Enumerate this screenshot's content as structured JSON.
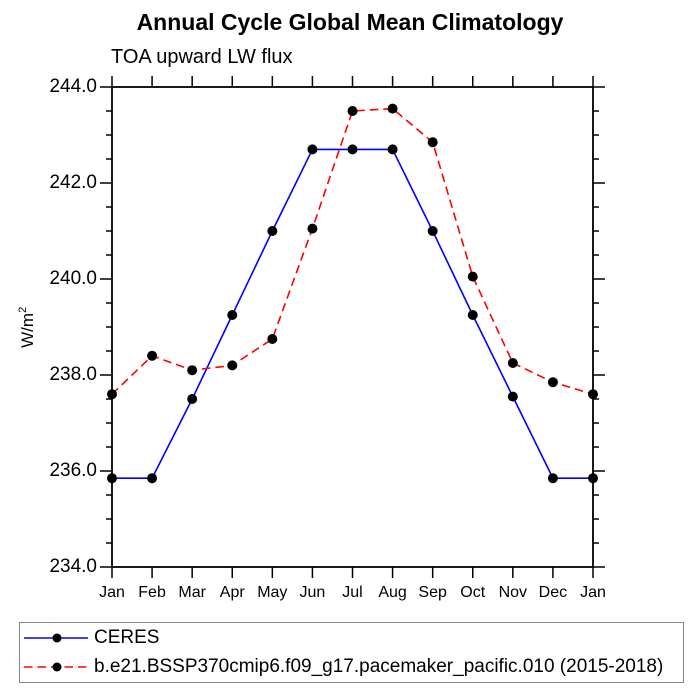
{
  "title": "Annual Cycle Global Mean Climatology",
  "subtitle": "TOA upward LW flux",
  "y_axis_label": {
    "base": "W/m",
    "superscript": "2"
  },
  "chart_data": {
    "type": "line",
    "categories": [
      "Jan",
      "Feb",
      "Mar",
      "Apr",
      "May",
      "Jun",
      "Jul",
      "Aug",
      "Sep",
      "Oct",
      "Nov",
      "Dec",
      "Jan"
    ],
    "series": [
      {
        "name": "CERES",
        "color": "#0000ff",
        "line_style": "solid",
        "marker": "circle",
        "marker_color": "#000000",
        "values": [
          235.85,
          235.85,
          237.5,
          239.25,
          241.0,
          242.7,
          242.7,
          242.7,
          241.0,
          239.25,
          237.55,
          235.85,
          235.85
        ]
      },
      {
        "name": "b.e21.BSSP370cmip6.f09_g17.pacemaker_pacific.010 (2015-2018)",
        "color": "#ff0000",
        "line_style": "dashed",
        "marker": "circle",
        "marker_color": "#000000",
        "values": [
          237.6,
          238.4,
          238.1,
          238.2,
          238.75,
          241.05,
          243.5,
          243.55,
          242.85,
          240.05,
          238.25,
          237.85,
          237.6
        ]
      }
    ],
    "ylim": [
      234.0,
      244.0
    ],
    "y_major_step": 2.0,
    "y_minor_step": 0.5,
    "y_tick_labels": [
      "244.0",
      "242.0",
      "240.0",
      "238.0",
      "236.0",
      "234.0"
    ],
    "grid": false,
    "legend_position": "bottom"
  },
  "colors": {
    "axis": "#000000",
    "text": "#000000",
    "legend_border": "#888888"
  }
}
